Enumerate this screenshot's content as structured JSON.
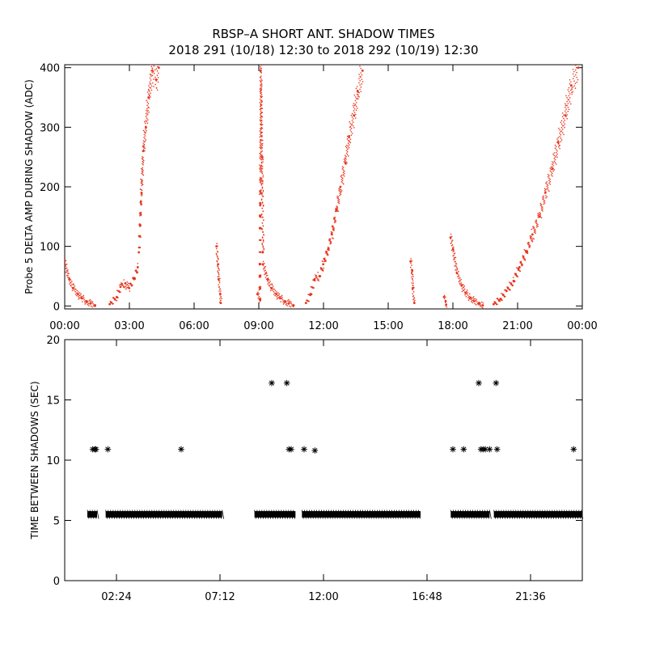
{
  "header": {
    "title_line1": "RBSP–A SHORT ANT. SHADOW TIMES",
    "title_line2": "2018 291 (10/18) 12:30 to 2018 292 (10/19) 12:30"
  },
  "colors": {
    "series_top": "#e8321a",
    "series_bottom": "#000000",
    "axes": "#000000",
    "background": "#ffffff"
  },
  "chart_data": [
    {
      "id": "delta_amp",
      "type": "scatter",
      "title": "",
      "ylabel": "Probe 5 DELTA AMP DURING SHADOW (ADC)",
      "xlabel": "",
      "xlim": [
        0,
        24
      ],
      "ylim": [
        -5,
        405
      ],
      "x_ticks": [
        0,
        3,
        6,
        9,
        12,
        15,
        18,
        21,
        24
      ],
      "x_tick_labels": [
        "00:00",
        "03:00",
        "06:00",
        "09:00",
        "12:00",
        "15:00",
        "18:00",
        "21:00",
        "00:00"
      ],
      "y_ticks": [
        0,
        100,
        200,
        300,
        400
      ],
      "y_tick_labels": [
        "0",
        "100",
        "200",
        "300",
        "400"
      ],
      "marker": "dot",
      "series": [
        {
          "name": "decay_1",
          "x": [
            0.0,
            0.2,
            0.4,
            0.6,
            0.8,
            1.0,
            1.2,
            1.4
          ],
          "y": [
            75,
            45,
            30,
            20,
            13,
            8,
            4,
            1
          ]
        },
        {
          "name": "rise_1",
          "x": [
            2.1,
            2.4,
            2.6,
            2.8,
            3.0,
            3.2,
            3.4
          ],
          "y": [
            3,
            15,
            32,
            38,
            30,
            45,
            65
          ]
        },
        {
          "name": "spike_1",
          "x": [
            3.45,
            3.55,
            3.65,
            3.75,
            3.9,
            4.05,
            4.25,
            4.35
          ],
          "y": [
            90,
            190,
            260,
            300,
            350,
            395,
            380,
            400
          ]
        },
        {
          "name": "burst_0700",
          "x": [
            7.05,
            7.1,
            7.15,
            7.2,
            7.25
          ],
          "y": [
            100,
            70,
            45,
            20,
            5
          ]
        },
        {
          "name": "burst_0900",
          "x": [
            8.95,
            9.05,
            9.1,
            9.15,
            9.2
          ],
          "y": [
            20,
            10,
            395,
            250,
            90
          ]
        },
        {
          "name": "decay_2",
          "x": [
            9.2,
            9.4,
            9.6,
            9.8,
            10.0,
            10.2,
            10.4,
            10.6
          ],
          "y": [
            70,
            45,
            30,
            20,
            13,
            8,
            4,
            1
          ]
        },
        {
          "name": "rise_2",
          "x": [
            11.2,
            11.4,
            11.6,
            11.8,
            12.0,
            12.2,
            12.4,
            12.6,
            12.8,
            13.0,
            13.2,
            13.4,
            13.6,
            13.8
          ],
          "y": [
            5,
            20,
            45,
            50,
            70,
            95,
            120,
            160,
            200,
            240,
            285,
            320,
            360,
            395
          ]
        },
        {
          "name": "burst_1600",
          "x": [
            16.05,
            16.1,
            16.15,
            16.2
          ],
          "y": [
            75,
            60,
            30,
            5
          ]
        },
        {
          "name": "burst_1740",
          "x": [
            17.6,
            17.65,
            17.7
          ],
          "y": [
            15,
            8,
            2
          ]
        },
        {
          "name": "decay_3",
          "x": [
            17.9,
            18.0,
            18.2,
            18.4,
            18.6,
            18.8,
            19.0,
            19.2,
            19.4
          ],
          "y": [
            115,
            95,
            55,
            35,
            22,
            14,
            8,
            4,
            1
          ]
        },
        {
          "name": "rise_3",
          "x": [
            19.9,
            20.2,
            20.5,
            20.8,
            21.1,
            21.4,
            21.7,
            22.0,
            22.3,
            22.6,
            22.9,
            23.2,
            23.5,
            23.8
          ],
          "y": [
            3,
            12,
            25,
            42,
            65,
            90,
            120,
            150,
            190,
            230,
            275,
            320,
            370,
            400
          ]
        }
      ]
    },
    {
      "id": "time_between",
      "type": "scatter",
      "title": "",
      "ylabel": "TIME BETWEEN SHADOWS (SEC)",
      "xlabel": "",
      "xlim": [
        0,
        24
      ],
      "ylim": [
        0,
        20
      ],
      "x_ticks": [
        2.4,
        7.2,
        12.0,
        16.8,
        21.6
      ],
      "x_tick_labels": [
        "02:24",
        "07:12",
        "12:00",
        "16:48",
        "21:36"
      ],
      "y_ticks": [
        0,
        5,
        10,
        15,
        20
      ],
      "y_tick_labels": [
        "0",
        "5",
        "10",
        "15",
        "20"
      ],
      "marker": "asterisk",
      "bands": [
        {
          "x_start": 1.05,
          "x_end": 1.5,
          "y": 5.5
        },
        {
          "x_start": 1.9,
          "x_end": 7.3,
          "y": 5.5
        },
        {
          "x_start": 8.8,
          "x_end": 10.7,
          "y": 5.5
        },
        {
          "x_start": 11.0,
          "x_end": 16.5,
          "y": 5.5
        },
        {
          "x_start": 17.9,
          "x_end": 19.7,
          "y": 5.5
        },
        {
          "x_start": 19.9,
          "x_end": 24.0,
          "y": 5.5
        }
      ],
      "points": {
        "x": [
          1.3,
          1.4,
          1.45,
          2.0,
          5.4,
          9.6,
          10.3,
          10.4,
          10.5,
          11.1,
          11.6,
          18.0,
          18.5,
          19.2,
          19.3,
          19.4,
          19.5,
          19.7,
          20.0,
          20.05,
          23.6
        ],
        "y": [
          10.9,
          10.9,
          10.9,
          10.9,
          10.9,
          16.4,
          16.4,
          10.9,
          10.9,
          10.9,
          10.8,
          10.9,
          10.9,
          16.4,
          10.9,
          10.9,
          10.9,
          10.9,
          16.4,
          10.9,
          10.9
        ]
      }
    }
  ]
}
